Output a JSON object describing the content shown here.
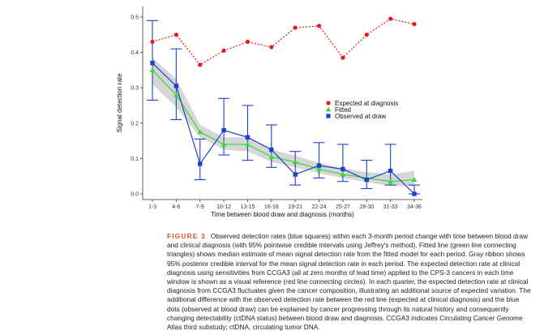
{
  "chart_data": {
    "type": "line",
    "xlabel": "Time between blood draw and diagnosis (months)",
    "ylabel": "Signal detection rate",
    "ylim": [
      -0.02,
      0.52
    ],
    "yticks": [
      0.0,
      0.1,
      0.2,
      0.3,
      0.4,
      0.5
    ],
    "ytick_labels": [
      "0.0",
      "0.1",
      "0.2",
      "0.3",
      "0.4",
      "0.5"
    ],
    "categories": [
      "1-3",
      "4-6",
      "7-9",
      "10-12",
      "13-15",
      "16-18",
      "19-21",
      "22-24",
      "25-27",
      "28-30",
      "31-33",
      "34-36"
    ],
    "grid": false,
    "legend_position": "right",
    "series": [
      {
        "name": "Expected at diagnosis",
        "color": "#e41a1c",
        "marker": "circle",
        "line": "dotted",
        "values": [
          0.43,
          0.45,
          0.365,
          0.405,
          0.43,
          0.415,
          0.47,
          0.475,
          0.385,
          0.45,
          0.495,
          0.48
        ]
      },
      {
        "name": "Fitted",
        "color": "#33dd33",
        "marker": "triangle",
        "line": "solid",
        "values": [
          0.35,
          0.28,
          0.175,
          0.14,
          0.14,
          0.105,
          0.09,
          0.07,
          0.055,
          0.045,
          0.035,
          0.04
        ],
        "ribbon_lower": [
          0.31,
          0.245,
          0.16,
          0.125,
          0.12,
          0.09,
          0.075,
          0.058,
          0.045,
          0.033,
          0.022,
          0.022
        ],
        "ribbon_upper": [
          0.385,
          0.325,
          0.195,
          0.16,
          0.16,
          0.125,
          0.108,
          0.088,
          0.072,
          0.062,
          0.055,
          0.065
        ]
      },
      {
        "name": "Observed at draw",
        "color": "#1f3fcf",
        "marker": "square",
        "line": "solid",
        "values": [
          0.37,
          0.305,
          0.085,
          0.18,
          0.16,
          0.125,
          0.055,
          0.08,
          0.07,
          0.04,
          0.065,
          0.0
        ],
        "ci_lower": [
          0.265,
          0.21,
          0.04,
          0.11,
          0.095,
          0.075,
          0.025,
          0.045,
          0.035,
          0.015,
          0.025,
          0.0
        ],
        "ci_upper": [
          0.49,
          0.41,
          0.155,
          0.27,
          0.25,
          0.195,
          0.12,
          0.145,
          0.14,
          0.095,
          0.14,
          0.025
        ]
      }
    ],
    "ribbon_color": "#c8c8c8"
  },
  "caption": {
    "label": "FIGURE 3",
    "text": "Observed detection rates (blue squares) within each 3-month period change with time between blood draw and clinical diagnosis (with 95% pointwise credible intervals using Jeffrey's method). Fitted line (green line connecting triangles) shows median estimate of mean signal detection rate from the fitted model for each period. Gray ribbon shows 95% posterior credible interval for the mean signal detection rate in each period. The expected detection rate at clinical diagnosis using sensitivities from CCGA3 (all at zero months of lead time) applied to the CPS-3 cancers in each time window is shown as a visual reference (red line connecting circles). In each quarter, the expected detection rate at clinical diagnosis from CCGA3 fluctuates given the cancer composition, illustrating an additional source of expected variation. The additional difference with the observed detection rate between the red line (expected at clinical diagnosis) and the blue dots (observed at blood draw) can be explained by cancer progressing through its natural history and consequently changing detectability (ctDNA status) between blood draw and diagnosis. CCGA3 indicates Circulating Cancer Genome Atlas third substudy; ctDNA, circulating tumor DNA."
  }
}
